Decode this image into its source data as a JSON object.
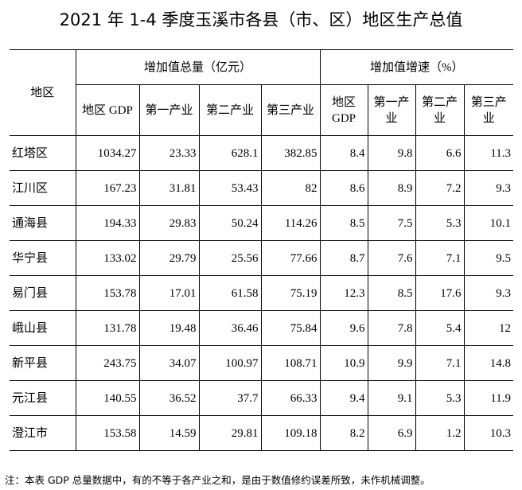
{
  "header": {
    "title": "2021 年 1-4 季度玉溪市各县（市、区）地区生产总值"
  },
  "table": {
    "region_header": "地区",
    "group_headers": [
      "增加值总量（亿元）",
      "增加值增速（%）"
    ],
    "column_headers": [
      "地区 GDP",
      "第一产业",
      "第二产业",
      "第三产业",
      "地区 GDP",
      "第一产业",
      "第二产业",
      "第三产业"
    ],
    "rows": [
      [
        "红塔区",
        1034.27,
        23.33,
        628.1,
        382.85,
        8.4,
        9.8,
        6.6,
        11.3
      ],
      [
        "江川区",
        167.23,
        31.81,
        53.43,
        82,
        8.6,
        8.9,
        7.2,
        9.3
      ],
      [
        "通海县",
        194.33,
        29.83,
        50.24,
        114.26,
        8.5,
        7.5,
        5.3,
        10.1
      ],
      [
        "华宁县",
        133.02,
        29.79,
        25.56,
        77.66,
        8.7,
        7.6,
        7.1,
        9.5
      ],
      [
        "易门县",
        153.78,
        17.01,
        61.58,
        75.19,
        12.3,
        8.5,
        17.6,
        9.3
      ],
      [
        "峨山县",
        131.78,
        19.48,
        36.46,
        75.84,
        9.6,
        7.8,
        5.4,
        12
      ],
      [
        "新平县",
        243.75,
        34.07,
        100.97,
        108.71,
        10.9,
        9.9,
        7.1,
        14.8
      ],
      [
        "元江县",
        140.55,
        36.52,
        37.7,
        66.33,
        9.4,
        9.1,
        5.3,
        11.9
      ],
      [
        "澄江市",
        153.58,
        14.59,
        29.81,
        109.18,
        8.2,
        6.9,
        1.2,
        10.3
      ]
    ]
  },
  "footnote": "注：本表 GDP 总量数据中，有的不等于各产业之和，是由于数值修约误差所致，未作机械调整。"
}
